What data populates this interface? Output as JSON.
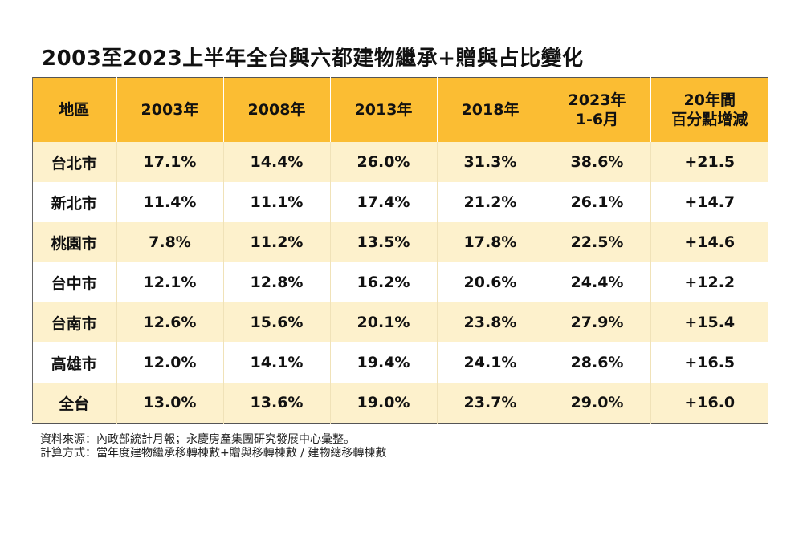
{
  "title": "2003至2023上半年全台與六都建物繼承+贈與占比變化",
  "chart_data": {
    "type": "table",
    "headers": [
      "地區",
      "2003年",
      "2008年",
      "2013年",
      "2018年",
      [
        "2023年",
        "1-6月"
      ],
      [
        "20年間",
        "百分點增減"
      ]
    ],
    "rows": [
      [
        "台北市",
        "17.1%",
        "14.4%",
        "26.0%",
        "31.3%",
        "38.6%",
        "+21.5"
      ],
      [
        "新北市",
        "11.4%",
        "11.1%",
        "17.4%",
        "21.2%",
        "26.1%",
        "+14.7"
      ],
      [
        "桃園市",
        "7.8%",
        "11.2%",
        "13.5%",
        "17.8%",
        "22.5%",
        "+14.6"
      ],
      [
        "台中市",
        "12.1%",
        "12.8%",
        "16.2%",
        "20.6%",
        "24.4%",
        "+12.2"
      ],
      [
        "台南市",
        "12.6%",
        "15.6%",
        "20.1%",
        "23.8%",
        "27.9%",
        "+15.4"
      ],
      [
        "高雄市",
        "12.0%",
        "14.1%",
        "19.4%",
        "24.1%",
        "28.6%",
        "+16.5"
      ],
      [
        "全台",
        "13.0%",
        "13.6%",
        "19.0%",
        "23.7%",
        "29.0%",
        "+16.0"
      ]
    ]
  },
  "notes": {
    "source": "資料來源：內政部統計月報；永慶房產集團研究發展中心彙整。",
    "method": "計算方式：當年度建物繼承移轉棟數+贈與移轉棟數 / 建物總移轉棟數"
  },
  "colors": {
    "header_bg": "#fbbd33",
    "row_alt_bg": "#fdf1cc",
    "row_bg": "#ffffff"
  }
}
